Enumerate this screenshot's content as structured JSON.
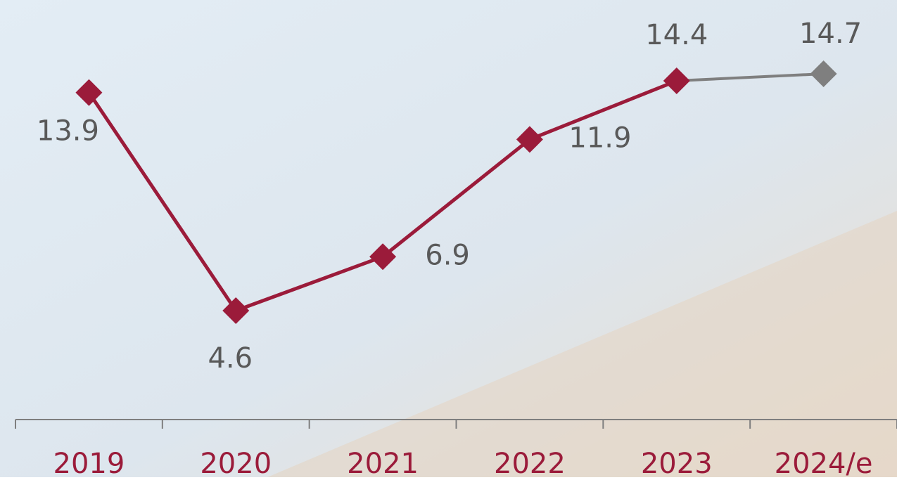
{
  "chart_data": {
    "type": "line",
    "categories": [
      "2019",
      "2020",
      "2021",
      "2022",
      "2023",
      "2024/e"
    ],
    "series": [
      {
        "values": [
          13.9,
          4.6,
          6.9,
          11.9,
          14.4,
          14.7
        ],
        "color": "#9b1b3a",
        "estimate_color": "#7f7f7f"
      }
    ],
    "category_color": "#9b1b3a",
    "label_color": "#595959"
  }
}
